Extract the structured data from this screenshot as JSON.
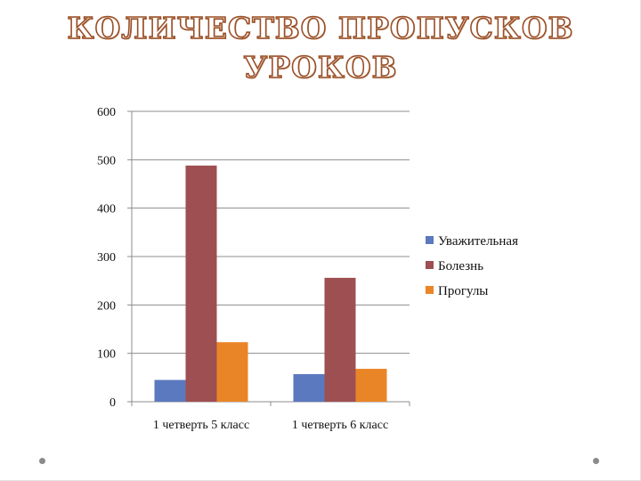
{
  "slide": {
    "title_line1": "КОЛИЧЕСТВО ПРОПУСКОВ",
    "title_line2": "УРОКОВ"
  },
  "chart_data": {
    "type": "bar",
    "title": "КОЛИЧЕСТВО ПРОПУСКОВ УРОКОВ",
    "categories": [
      "1 четверть 5 класс",
      "1 четверть 6 класс"
    ],
    "series": [
      {
        "name": "Уважительная",
        "color": "#5b79be",
        "values": [
          45,
          57
        ]
      },
      {
        "name": "Болезнь",
        "color": "#9e4f52",
        "values": [
          488,
          256
        ]
      },
      {
        "name": "Прогулы",
        "color": "#ea8527",
        "values": [
          123,
          68
        ]
      }
    ],
    "ylim": [
      0,
      600
    ],
    "yticks": [
      0,
      100,
      200,
      300,
      400,
      500,
      600
    ],
    "ytick_labels": [
      "0",
      "100",
      "200",
      "300",
      "400",
      "500",
      "600"
    ],
    "grid": true,
    "legend_position": "right"
  }
}
